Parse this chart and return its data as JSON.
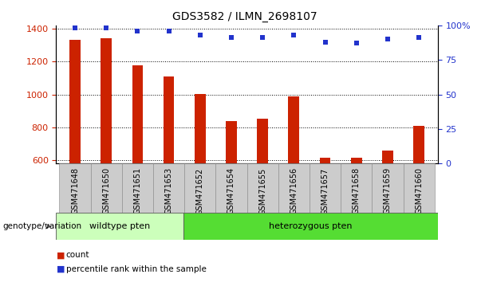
{
  "title": "GDS3582 / ILMN_2698107",
  "categories": [
    "GSM471648",
    "GSM471650",
    "GSM471651",
    "GSM471653",
    "GSM471652",
    "GSM471654",
    "GSM471655",
    "GSM471656",
    "GSM471657",
    "GSM471658",
    "GSM471659",
    "GSM471660"
  ],
  "bar_values": [
    1330,
    1340,
    1175,
    1110,
    1005,
    840,
    855,
    990,
    615,
    615,
    660,
    810
  ],
  "scatter_values": [
    98,
    98,
    96,
    96,
    93,
    91,
    91,
    93,
    88,
    87,
    90,
    91
  ],
  "ylim_left": [
    580,
    1420
  ],
  "ylim_right": [
    0,
    100
  ],
  "yticks_left": [
    600,
    800,
    1000,
    1200,
    1400
  ],
  "yticks_right": [
    0,
    25,
    50,
    75,
    100
  ],
  "yticklabels_right": [
    "0",
    "25",
    "50",
    "75",
    "100%"
  ],
  "bar_color": "#cc2200",
  "scatter_color": "#2233cc",
  "wildtype_color": "#ccffbb",
  "hetero_color": "#55dd33",
  "wildtype_label": "wildtype pten",
  "hetero_label": "heterozygous pten",
  "wildtype_count": 4,
  "hetero_count": 8,
  "genotype_label": "genotype/variation",
  "legend_count_label": "count",
  "legend_pct_label": "percentile rank within the sample",
  "tick_bg_color": "#cccccc",
  "bar_width": 0.35
}
